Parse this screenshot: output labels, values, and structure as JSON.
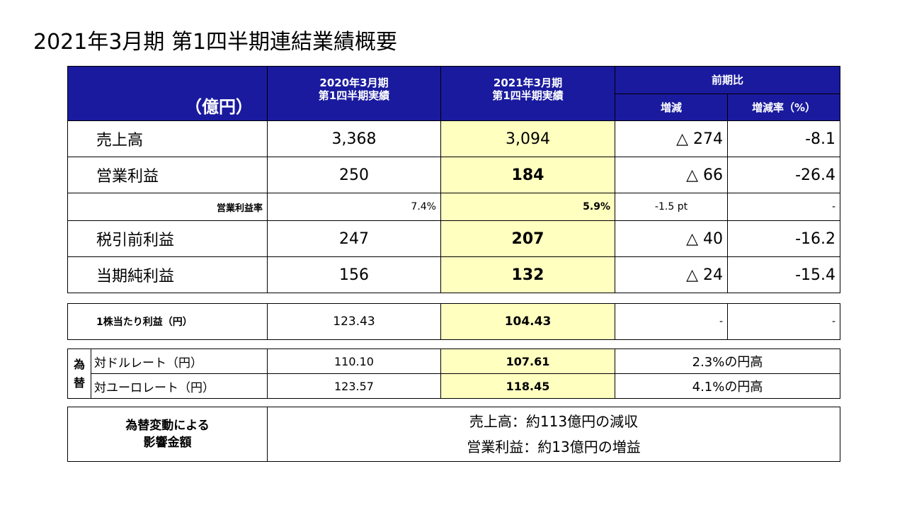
{
  "title": "2021年3月期 第1四半期連結業績概要",
  "unit": "（億円）",
  "header": {
    "col_prev_line1": "2020年3月期",
    "col_prev_line2": "第1四半期実績",
    "col_cur_line1": "2021年3月期",
    "col_cur_line2": "第1四半期実績",
    "col_compare": "前期比",
    "col_diff": "増減",
    "col_rate": "増減率（%）"
  },
  "rows": [
    {
      "label": "売上高",
      "prev": "3,368",
      "cur": "3,094",
      "diff": "△ 274",
      "rate": "-8.1"
    },
    {
      "label": "営業利益",
      "prev": "250",
      "cur": "184",
      "diff": "△ 66",
      "rate": "-26.4"
    },
    {
      "label": "営業利益率",
      "prev": "7.4%",
      "cur": "5.9%",
      "diff": "-1.5 pt",
      "rate": "-"
    },
    {
      "label": "税引前利益",
      "prev": "247",
      "cur": "207",
      "diff": "△ 40",
      "rate": "-16.2"
    },
    {
      "label": "当期純利益",
      "prev": "156",
      "cur": "132",
      "diff": "△ 24",
      "rate": "-15.4"
    }
  ],
  "eps": {
    "label": "1株当たり利益（円）",
    "prev": "123.43",
    "cur": "104.43",
    "diff": "-",
    "rate": "-"
  },
  "fx": {
    "group_label_1": "為",
    "group_label_2": "替",
    "rows": [
      {
        "label": "対ドルレート（円）",
        "prev": "110.10",
        "cur": "107.61",
        "note": "2.3%の円高"
      },
      {
        "label": "対ユーロレート（円）",
        "prev": "123.57",
        "cur": "118.45",
        "note": "4.1%の円高"
      }
    ]
  },
  "impact": {
    "label_line1": "為替変動による",
    "label_line2": "影響金額",
    "line1": "売上高：約113億円の減収",
    "line2": "営業利益：約13億円の増益"
  }
}
